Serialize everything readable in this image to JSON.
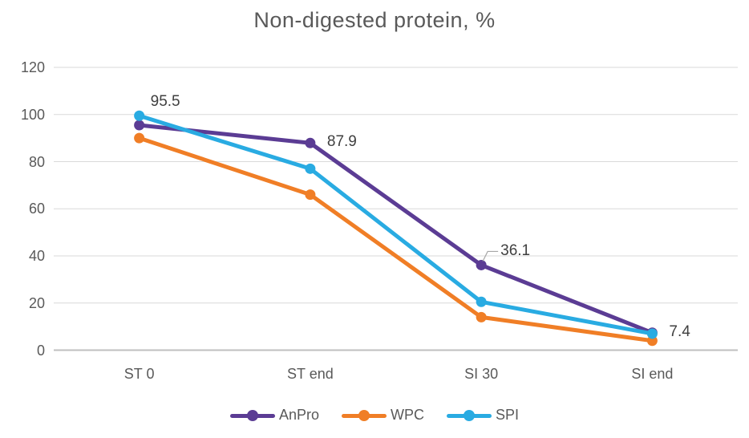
{
  "chart_data": {
    "type": "line",
    "title": "Non-digested protein, %",
    "categories": [
      "ST 0",
      "ST end",
      "SI 30",
      "SI end"
    ],
    "series": [
      {
        "name": "AnPro",
        "color": "#5B3C94",
        "values": [
          95.5,
          87.9,
          36.1,
          7.4
        ]
      },
      {
        "name": "WPC",
        "color": "#F07E26",
        "values": [
          90,
          66,
          14,
          4
        ]
      },
      {
        "name": "SPI",
        "color": "#29ABE2",
        "values": [
          99.5,
          77,
          20.5,
          7
        ]
      }
    ],
    "data_labels": [
      {
        "series": "AnPro",
        "index": 0,
        "text": "95.5",
        "placement": "above-right"
      },
      {
        "series": "AnPro",
        "index": 1,
        "text": "87.9",
        "placement": "right"
      },
      {
        "series": "AnPro",
        "index": 2,
        "text": "36.1",
        "placement": "callout-right"
      },
      {
        "series": "AnPro",
        "index": 3,
        "text": "7.4",
        "placement": "right"
      }
    ],
    "ylim": [
      0,
      120
    ],
    "yticks": [
      0,
      20,
      40,
      60,
      80,
      100,
      120
    ],
    "grid": true,
    "legend_position": "bottom"
  },
  "colors": {
    "title_text": "#595959",
    "tick_text": "#595959",
    "category_text": "#595959",
    "legend_text": "#595959",
    "data_label_text": "#3F3F3F",
    "gridline": "#D9D9D9",
    "axis_line": "#BFBFBF",
    "leader_line": "#A6A6A6",
    "background": "#FFFFFF"
  }
}
